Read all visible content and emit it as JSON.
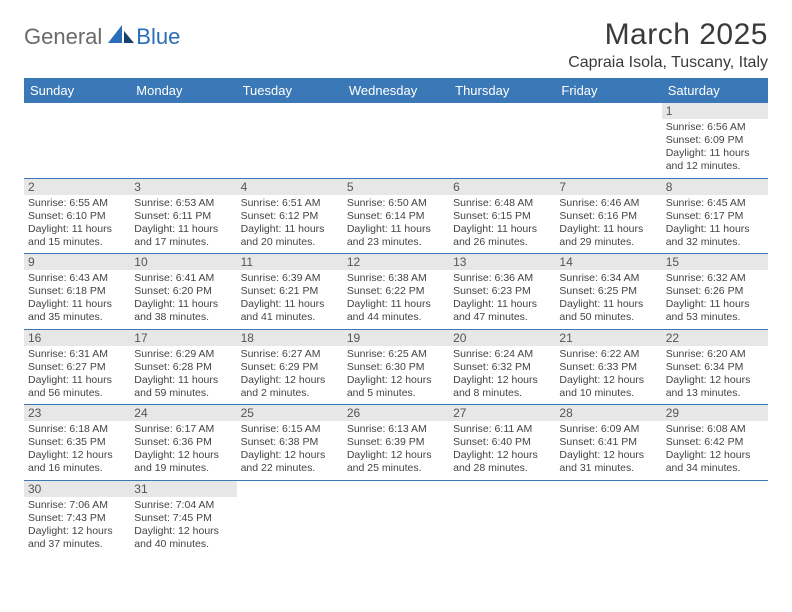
{
  "brand": {
    "part1": "General",
    "part2": "Blue"
  },
  "title": "March 2025",
  "location": "Capraia Isola, Tuscany, Italy",
  "colors": {
    "header_bg": "#3b78b8",
    "header_fg": "#ffffff",
    "daybar_bg": "#e7e7e7",
    "text": "#444444",
    "border": "#3b78b8",
    "brand_gray": "#6a6a6a",
    "brand_blue": "#2a6db8"
  },
  "weekdays": [
    "Sunday",
    "Monday",
    "Tuesday",
    "Wednesday",
    "Thursday",
    "Friday",
    "Saturday"
  ],
  "weeks": [
    [
      {
        "empty": true
      },
      {
        "empty": true
      },
      {
        "empty": true
      },
      {
        "empty": true
      },
      {
        "empty": true
      },
      {
        "empty": true
      },
      {
        "day": "1",
        "sunrise": "Sunrise: 6:56 AM",
        "sunset": "Sunset: 6:09 PM",
        "daylight1": "Daylight: 11 hours",
        "daylight2": "and 12 minutes."
      }
    ],
    [
      {
        "day": "2",
        "sunrise": "Sunrise: 6:55 AM",
        "sunset": "Sunset: 6:10 PM",
        "daylight1": "Daylight: 11 hours",
        "daylight2": "and 15 minutes."
      },
      {
        "day": "3",
        "sunrise": "Sunrise: 6:53 AM",
        "sunset": "Sunset: 6:11 PM",
        "daylight1": "Daylight: 11 hours",
        "daylight2": "and 17 minutes."
      },
      {
        "day": "4",
        "sunrise": "Sunrise: 6:51 AM",
        "sunset": "Sunset: 6:12 PM",
        "daylight1": "Daylight: 11 hours",
        "daylight2": "and 20 minutes."
      },
      {
        "day": "5",
        "sunrise": "Sunrise: 6:50 AM",
        "sunset": "Sunset: 6:14 PM",
        "daylight1": "Daylight: 11 hours",
        "daylight2": "and 23 minutes."
      },
      {
        "day": "6",
        "sunrise": "Sunrise: 6:48 AM",
        "sunset": "Sunset: 6:15 PM",
        "daylight1": "Daylight: 11 hours",
        "daylight2": "and 26 minutes."
      },
      {
        "day": "7",
        "sunrise": "Sunrise: 6:46 AM",
        "sunset": "Sunset: 6:16 PM",
        "daylight1": "Daylight: 11 hours",
        "daylight2": "and 29 minutes."
      },
      {
        "day": "8",
        "sunrise": "Sunrise: 6:45 AM",
        "sunset": "Sunset: 6:17 PM",
        "daylight1": "Daylight: 11 hours",
        "daylight2": "and 32 minutes."
      }
    ],
    [
      {
        "day": "9",
        "sunrise": "Sunrise: 6:43 AM",
        "sunset": "Sunset: 6:18 PM",
        "daylight1": "Daylight: 11 hours",
        "daylight2": "and 35 minutes."
      },
      {
        "day": "10",
        "sunrise": "Sunrise: 6:41 AM",
        "sunset": "Sunset: 6:20 PM",
        "daylight1": "Daylight: 11 hours",
        "daylight2": "and 38 minutes."
      },
      {
        "day": "11",
        "sunrise": "Sunrise: 6:39 AM",
        "sunset": "Sunset: 6:21 PM",
        "daylight1": "Daylight: 11 hours",
        "daylight2": "and 41 minutes."
      },
      {
        "day": "12",
        "sunrise": "Sunrise: 6:38 AM",
        "sunset": "Sunset: 6:22 PM",
        "daylight1": "Daylight: 11 hours",
        "daylight2": "and 44 minutes."
      },
      {
        "day": "13",
        "sunrise": "Sunrise: 6:36 AM",
        "sunset": "Sunset: 6:23 PM",
        "daylight1": "Daylight: 11 hours",
        "daylight2": "and 47 minutes."
      },
      {
        "day": "14",
        "sunrise": "Sunrise: 6:34 AM",
        "sunset": "Sunset: 6:25 PM",
        "daylight1": "Daylight: 11 hours",
        "daylight2": "and 50 minutes."
      },
      {
        "day": "15",
        "sunrise": "Sunrise: 6:32 AM",
        "sunset": "Sunset: 6:26 PM",
        "daylight1": "Daylight: 11 hours",
        "daylight2": "and 53 minutes."
      }
    ],
    [
      {
        "day": "16",
        "sunrise": "Sunrise: 6:31 AM",
        "sunset": "Sunset: 6:27 PM",
        "daylight1": "Daylight: 11 hours",
        "daylight2": "and 56 minutes."
      },
      {
        "day": "17",
        "sunrise": "Sunrise: 6:29 AM",
        "sunset": "Sunset: 6:28 PM",
        "daylight1": "Daylight: 11 hours",
        "daylight2": "and 59 minutes."
      },
      {
        "day": "18",
        "sunrise": "Sunrise: 6:27 AM",
        "sunset": "Sunset: 6:29 PM",
        "daylight1": "Daylight: 12 hours",
        "daylight2": "and 2 minutes."
      },
      {
        "day": "19",
        "sunrise": "Sunrise: 6:25 AM",
        "sunset": "Sunset: 6:30 PM",
        "daylight1": "Daylight: 12 hours",
        "daylight2": "and 5 minutes."
      },
      {
        "day": "20",
        "sunrise": "Sunrise: 6:24 AM",
        "sunset": "Sunset: 6:32 PM",
        "daylight1": "Daylight: 12 hours",
        "daylight2": "and 8 minutes."
      },
      {
        "day": "21",
        "sunrise": "Sunrise: 6:22 AM",
        "sunset": "Sunset: 6:33 PM",
        "daylight1": "Daylight: 12 hours",
        "daylight2": "and 10 minutes."
      },
      {
        "day": "22",
        "sunrise": "Sunrise: 6:20 AM",
        "sunset": "Sunset: 6:34 PM",
        "daylight1": "Daylight: 12 hours",
        "daylight2": "and 13 minutes."
      }
    ],
    [
      {
        "day": "23",
        "sunrise": "Sunrise: 6:18 AM",
        "sunset": "Sunset: 6:35 PM",
        "daylight1": "Daylight: 12 hours",
        "daylight2": "and 16 minutes."
      },
      {
        "day": "24",
        "sunrise": "Sunrise: 6:17 AM",
        "sunset": "Sunset: 6:36 PM",
        "daylight1": "Daylight: 12 hours",
        "daylight2": "and 19 minutes."
      },
      {
        "day": "25",
        "sunrise": "Sunrise: 6:15 AM",
        "sunset": "Sunset: 6:38 PM",
        "daylight1": "Daylight: 12 hours",
        "daylight2": "and 22 minutes."
      },
      {
        "day": "26",
        "sunrise": "Sunrise: 6:13 AM",
        "sunset": "Sunset: 6:39 PM",
        "daylight1": "Daylight: 12 hours",
        "daylight2": "and 25 minutes."
      },
      {
        "day": "27",
        "sunrise": "Sunrise: 6:11 AM",
        "sunset": "Sunset: 6:40 PM",
        "daylight1": "Daylight: 12 hours",
        "daylight2": "and 28 minutes."
      },
      {
        "day": "28",
        "sunrise": "Sunrise: 6:09 AM",
        "sunset": "Sunset: 6:41 PM",
        "daylight1": "Daylight: 12 hours",
        "daylight2": "and 31 minutes."
      },
      {
        "day": "29",
        "sunrise": "Sunrise: 6:08 AM",
        "sunset": "Sunset: 6:42 PM",
        "daylight1": "Daylight: 12 hours",
        "daylight2": "and 34 minutes."
      }
    ],
    [
      {
        "day": "30",
        "sunrise": "Sunrise: 7:06 AM",
        "sunset": "Sunset: 7:43 PM",
        "daylight1": "Daylight: 12 hours",
        "daylight2": "and 37 minutes."
      },
      {
        "day": "31",
        "sunrise": "Sunrise: 7:04 AM",
        "sunset": "Sunset: 7:45 PM",
        "daylight1": "Daylight: 12 hours",
        "daylight2": "and 40 minutes."
      },
      {
        "empty": true
      },
      {
        "empty": true
      },
      {
        "empty": true
      },
      {
        "empty": true
      },
      {
        "empty": true
      }
    ]
  ]
}
